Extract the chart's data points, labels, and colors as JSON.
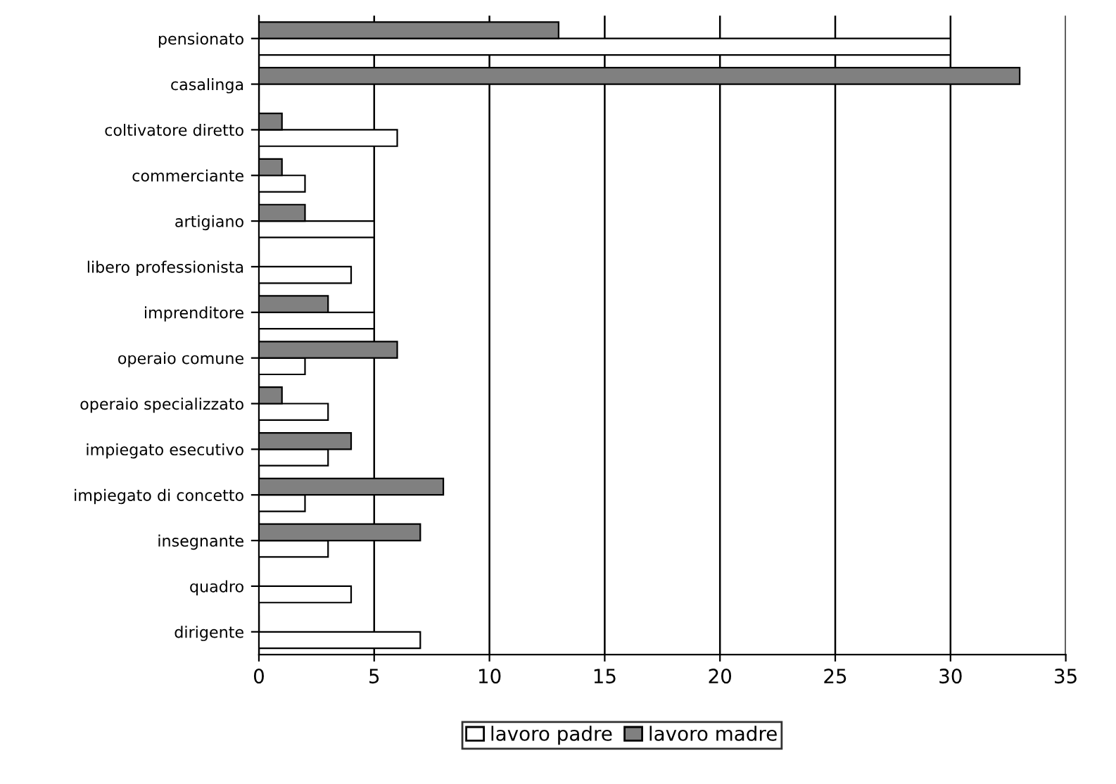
{
  "chart_data": {
    "type": "bar",
    "orientation": "horizontal",
    "categories": [
      "pensionato",
      "casalinga",
      "coltivatore diretto",
      "commerciante",
      "artigiano",
      "libero professionista",
      "imprenditore",
      "operaio comune",
      "operaio specializzato",
      "impiegato esecutivo",
      "impiegato di concetto",
      "insegnante",
      "quadro",
      "dirigente"
    ],
    "series": [
      {
        "name": "lavoro padre",
        "color": "#ffffff",
        "values": [
          30,
          0,
          6,
          2,
          5,
          4,
          5,
          2,
          3,
          3,
          2,
          3,
          4,
          7
        ]
      },
      {
        "name": "lavoro madre",
        "color": "#808080",
        "values": [
          13,
          33,
          1,
          1,
          2,
          0,
          3,
          6,
          1,
          4,
          8,
          7,
          0,
          0
        ]
      }
    ],
    "xlim": [
      0,
      35
    ],
    "xticks": [
      0,
      5,
      10,
      15,
      20,
      25,
      30,
      35
    ],
    "grid": "x",
    "legend": "bottom"
  }
}
